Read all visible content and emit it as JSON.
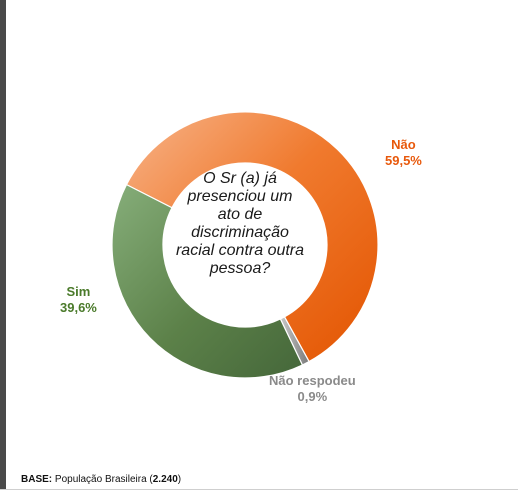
{
  "chart_data": {
    "type": "pie",
    "title": "O Sr (a) já presenciou um ato de discriminação racial contra outra pessoa?",
    "slices": [
      {
        "label": "Não",
        "value": 59.5,
        "value_text": "59,5%",
        "color": "#e8590c"
      },
      {
        "label": "Não respodeu",
        "value": 0.9,
        "value_text": "0,9%",
        "color": "#9a9a9a"
      },
      {
        "label": "Sim",
        "value": 39.6,
        "value_text": "39,6%",
        "color": "#4f7a3d"
      }
    ]
  },
  "footer": {
    "label": "BASE:",
    "text": "População Brasileira (",
    "count": "2.240",
    "close": ")"
  }
}
